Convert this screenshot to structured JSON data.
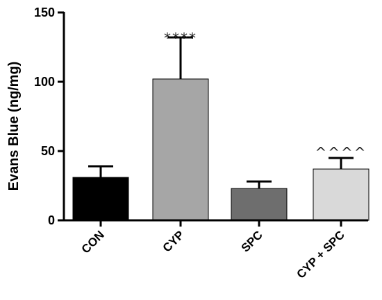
{
  "chart_data": {
    "type": "bar",
    "title": "",
    "xlabel": "",
    "ylabel": "Evans Blue (ng/mg)",
    "ylim": [
      0,
      150
    ],
    "yticks": [
      0,
      50,
      100,
      150
    ],
    "categories": [
      "CON",
      "CYP",
      "SPC",
      "CYP + SPC"
    ],
    "values": [
      31,
      102,
      23,
      37
    ],
    "error_upper": [
      39,
      132,
      28,
      45
    ],
    "annotations": [
      "",
      "****",
      "",
      "^^^^"
    ],
    "colors": [
      "#000000",
      "#a6a6a6",
      "#6e6e6e",
      "#d9d9d9"
    ],
    "grid": false,
    "legend": "none"
  }
}
